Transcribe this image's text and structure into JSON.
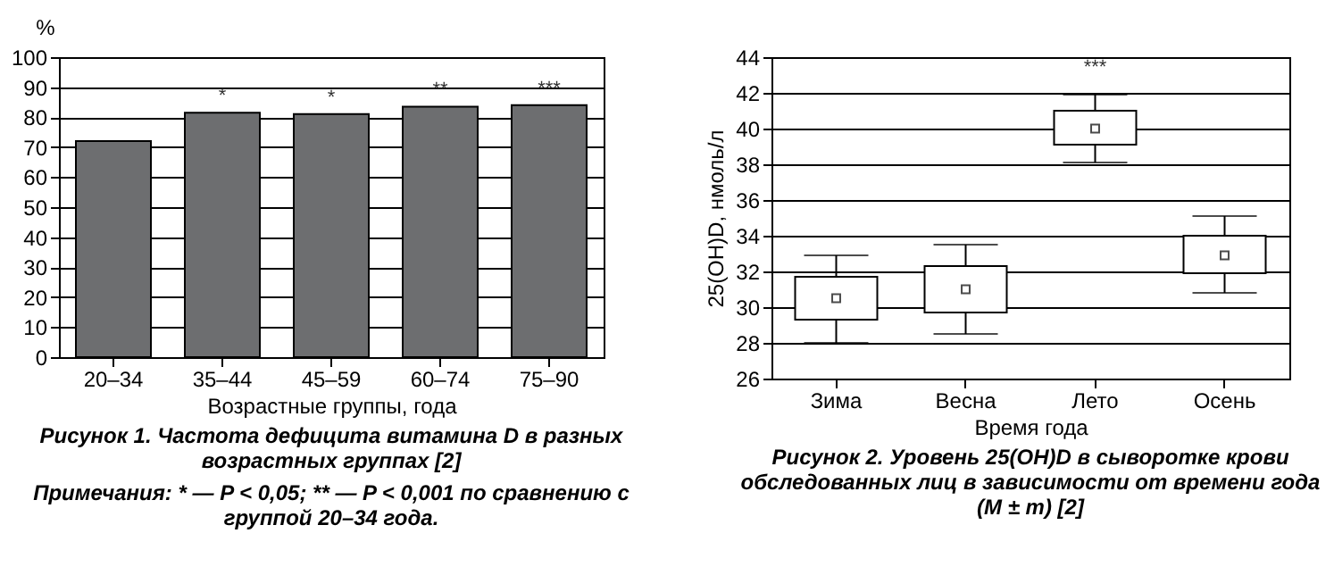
{
  "chart_data": [
    {
      "type": "bar",
      "title": "Рисунок 1. Частота дефицита витамина D в разных возрастных группах [2]",
      "xlabel": "Возрастные группы, года",
      "ylabel": "%",
      "categories": [
        "20–34",
        "35–44",
        "45–59",
        "60–74",
        "75–90"
      ],
      "values": [
        72,
        81.5,
        81,
        83.5,
        84
      ],
      "color": "#6d6e70",
      "ylim": [
        0,
        100
      ],
      "yticks": [
        0,
        10,
        20,
        30,
        40,
        50,
        60,
        70,
        80,
        90,
        100
      ],
      "grid": "y",
      "annotations": [
        {
          "text": "*",
          "x": "35–44",
          "y": 81.5
        },
        {
          "text": "*",
          "x": "45–59",
          "y": 81
        },
        {
          "text": "**",
          "x": "60–74",
          "y": 83.5
        },
        {
          "text": "***",
          "x": "75–90",
          "y": 84
        },
        "Примечания: * — P < 0,05; ** — P < 0,001 по сравнению с группой 20–34 года."
      ]
    },
    {
      "type": "box",
      "title": "Рисунок 2. Уровень 25(OH)D в сыворотке крови обследованных лиц в зависимости от времени года (M ± m) [2]",
      "xlabel": "Время года",
      "ylabel": "25(OH)D, нмоль/л",
      "categories": [
        "Зима",
        "Весна",
        "Лето",
        "Осень"
      ],
      "boxes": [
        {
          "low": 28.0,
          "q1": 29.3,
          "median": 30.5,
          "q3": 31.7,
          "high": 32.9
        },
        {
          "low": 28.5,
          "q1": 29.7,
          "median": 31.0,
          "q3": 32.3,
          "high": 33.5
        },
        {
          "low": 38.1,
          "q1": 39.1,
          "median": 40.0,
          "q3": 41.0,
          "high": 41.9
        },
        {
          "low": 30.8,
          "q1": 31.9,
          "median": 32.9,
          "q3": 34.0,
          "high": 35.1
        }
      ],
      "ylim": [
        26,
        44
      ],
      "yticks": [
        26,
        28,
        30,
        32,
        34,
        36,
        38,
        40,
        42,
        44
      ],
      "grid": "y",
      "marker": "square",
      "annotations": [
        {
          "text": "***",
          "x": "Лето",
          "y": 41.9
        }
      ]
    }
  ]
}
